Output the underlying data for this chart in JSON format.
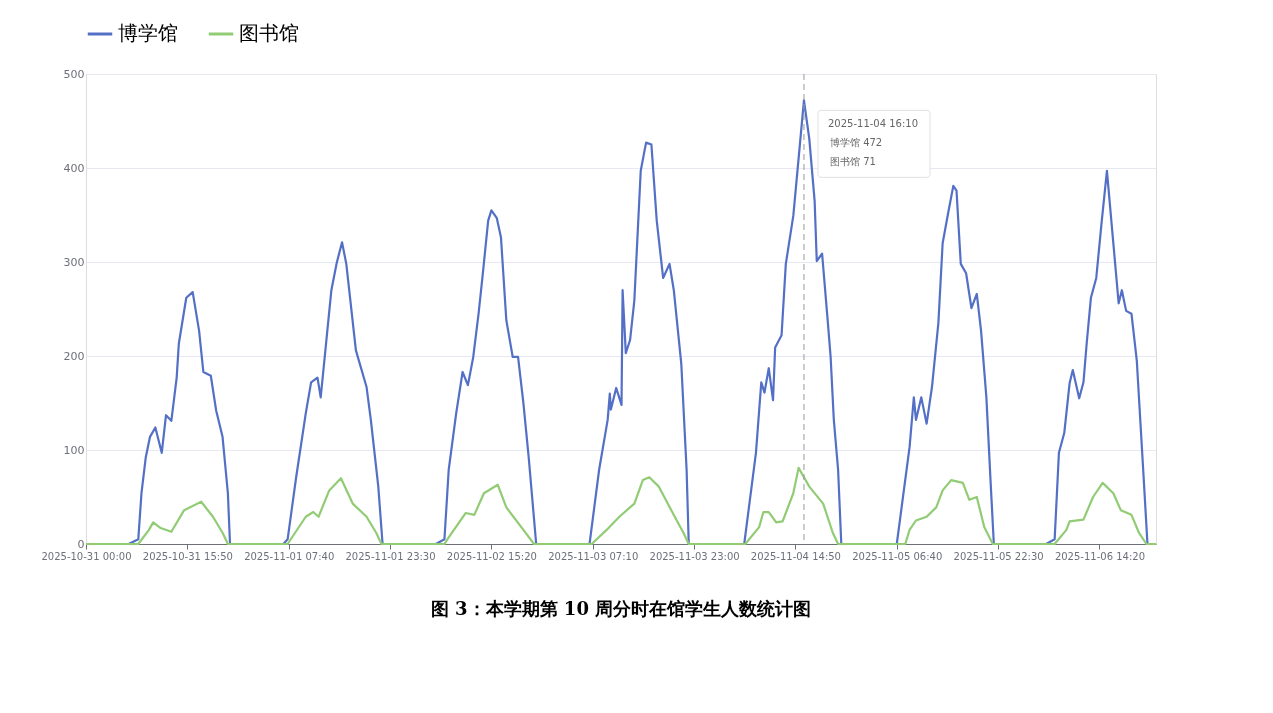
{
  "chart_data": {
    "type": "line",
    "title": "图 3：本学期第 10 周分时在馆学生人数统计图",
    "xlim": [
      "2025-10-31T00:00",
      "2025-11-06T23:10"
    ],
    "xticks": [
      {
        "value": "2025-10-31T00:00",
        "label": "2025-10-31 00:00"
      },
      {
        "value": "2025-10-31T15:50",
        "label": "2025-10-31 15:50"
      },
      {
        "value": "2025-11-01T07:40",
        "label": "2025-11-01 07:40"
      },
      {
        "value": "2025-11-01T23:30",
        "label": "2025-11-01 23:30"
      },
      {
        "value": "2025-11-02T15:20",
        "label": "2025-11-02 15:20"
      },
      {
        "value": "2025-11-03T07:10",
        "label": "2025-11-03 07:10"
      },
      {
        "value": "2025-11-03T23:00",
        "label": "2025-11-03 23:00"
      },
      {
        "value": "2025-11-04T14:50",
        "label": "2025-11-04 14:50"
      },
      {
        "value": "2025-11-05T06:40",
        "label": "2025-11-05 06:40"
      },
      {
        "value": "2025-11-05T22:30",
        "label": "2025-11-05 22:30"
      },
      {
        "value": "2025-11-06T14:20",
        "label": "2025-11-06 14:20"
      }
    ],
    "ylim": [
      0,
      500
    ],
    "yticks": [
      0,
      100,
      200,
      300,
      400,
      500
    ],
    "grid": "y",
    "legend": "top left",
    "line_style": "solid",
    "ref_lines": [
      {
        "axis": "x",
        "value": "2025-11-04T16:10",
        "color": "#999999",
        "line_style": "dashed"
      }
    ],
    "annotations": [
      {
        "text": "2025-11-04 16:10",
        "x": "2025-11-04T16:10",
        "y": 472
      },
      "博学馆  472",
      "图书馆  71"
    ],
    "series": [
      {
        "name": "博学馆",
        "color": "#5470c6",
        "x": [
          "2025-10-31T00:00",
          "2025-10-31T06:40",
          "2025-10-31T08:10",
          "2025-10-31T08:40",
          "2025-10-31T09:20",
          "2025-10-31T10:00",
          "2025-10-31T10:50",
          "2025-10-31T11:50",
          "2025-10-31T12:30",
          "2025-10-31T13:20",
          "2025-10-31T14:10",
          "2025-10-31T14:30",
          "2025-10-31T15:40",
          "2025-10-31T16:40",
          "2025-10-31T17:40",
          "2025-10-31T18:20",
          "2025-10-31T19:30",
          "2025-10-31T20:20",
          "2025-10-31T21:20",
          "2025-10-31T22:10",
          "2025-10-31T22:30",
          "2025-11-01T06:50",
          "2025-11-01T07:30",
          "2025-11-01T08:50",
          "2025-11-01T10:20",
          "2025-11-01T11:10",
          "2025-11-01T12:10",
          "2025-11-01T12:40",
          "2025-11-01T13:30",
          "2025-11-01T14:20",
          "2025-11-01T15:10",
          "2025-11-01T16:00",
          "2025-11-01T16:40",
          "2025-11-01T18:10",
          "2025-11-01T19:50",
          "2025-11-01T20:30",
          "2025-11-01T21:40",
          "2025-11-01T22:20",
          "2025-11-02T06:40",
          "2025-11-02T08:00",
          "2025-11-02T08:40",
          "2025-11-02T09:50",
          "2025-11-02T10:50",
          "2025-11-02T11:40",
          "2025-11-02T12:30",
          "2025-11-02T13:20",
          "2025-11-02T14:00",
          "2025-11-02T14:50",
          "2025-11-02T15:20",
          "2025-11-02T16:10",
          "2025-11-02T16:50",
          "2025-11-02T17:40",
          "2025-11-02T18:40",
          "2025-11-02T19:30",
          "2025-11-02T20:20",
          "2025-11-02T21:10",
          "2025-11-02T22:20",
          "2025-11-03T06:40",
          "2025-11-03T08:10",
          "2025-11-03T09:30",
          "2025-11-03T09:50",
          "2025-11-03T10:00",
          "2025-11-03T10:50",
          "2025-11-03T11:40",
          "2025-11-03T11:50",
          "2025-11-03T12:20",
          "2025-11-03T13:00",
          "2025-11-03T13:40",
          "2025-11-03T14:40",
          "2025-11-03T15:30",
          "2025-11-03T16:20",
          "2025-11-03T17:10",
          "2025-11-03T18:10",
          "2025-11-03T19:10",
          "2025-11-03T19:50",
          "2025-11-03T21:00",
          "2025-11-03T21:50",
          "2025-11-03T22:10",
          "2025-11-04T06:50",
          "2025-11-04T08:40",
          "2025-11-04T09:30",
          "2025-11-04T10:00",
          "2025-11-04T10:40",
          "2025-11-04T11:20",
          "2025-11-04T11:40",
          "2025-11-04T12:40",
          "2025-11-04T13:20",
          "2025-11-04T14:30",
          "2025-11-04T16:10",
          "2025-11-04T17:00",
          "2025-11-04T17:50",
          "2025-11-04T18:10",
          "2025-11-04T19:00",
          "2025-11-04T19:50",
          "2025-11-04T20:20",
          "2025-11-04T20:50",
          "2025-11-04T21:30",
          "2025-11-04T22:00",
          "2025-11-05T06:40",
          "2025-11-05T08:40",
          "2025-11-05T09:20",
          "2025-11-05T09:40",
          "2025-11-05T10:30",
          "2025-11-05T11:20",
          "2025-11-05T12:10",
          "2025-11-05T13:10",
          "2025-11-05T13:50",
          "2025-11-05T14:40",
          "2025-11-05T15:30",
          "2025-11-05T16:00",
          "2025-11-05T16:40",
          "2025-11-05T17:30",
          "2025-11-05T18:20",
          "2025-11-05T19:10",
          "2025-11-05T19:50",
          "2025-11-05T20:40",
          "2025-11-05T21:20",
          "2025-11-05T21:50",
          "2025-11-06T06:00",
          "2025-11-06T07:20",
          "2025-11-06T08:00",
          "2025-11-06T08:50",
          "2025-11-06T09:40",
          "2025-11-06T10:10",
          "2025-11-06T11:10",
          "2025-11-06T11:50",
          "2025-11-06T12:20",
          "2025-11-06T13:00",
          "2025-11-06T13:50",
          "2025-11-06T14:40",
          "2025-11-06T15:30",
          "2025-11-06T16:30",
          "2025-11-06T17:20",
          "2025-11-06T17:50",
          "2025-11-06T18:30",
          "2025-11-06T19:20",
          "2025-11-06T20:10",
          "2025-11-06T21:10",
          "2025-11-06T21:50",
          "2025-11-06T23:10"
        ],
        "values": [
          0,
          0,
          5,
          54,
          92,
          114,
          124,
          97,
          137,
          131,
          177,
          213,
          262,
          268,
          227,
          183,
          179,
          142,
          114,
          54,
          0,
          0,
          5,
          71,
          139,
          172,
          177,
          156,
          213,
          270,
          299,
          321,
          298,
          206,
          167,
          132,
          61,
          0,
          0,
          5,
          79,
          139,
          183,
          169,
          199,
          245,
          288,
          344,
          355,
          347,
          326,
          238,
          199,
          199,
          150,
          92,
          0,
          0,
          79,
          132,
          160,
          143,
          166,
          148,
          270,
          203,
          217,
          259,
          397,
          427,
          425,
          344,
          283,
          298,
          270,
          192,
          79,
          0,
          0,
          97,
          172,
          161,
          187,
          153,
          209,
          222,
          298,
          349,
          472,
          431,
          365,
          301,
          309,
          241,
          199,
          132,
          79,
          0,
          0,
          103,
          156,
          132,
          156,
          128,
          167,
          235,
          320,
          351,
          381,
          376,
          298,
          288,
          251,
          266,
          227,
          156,
          65,
          0,
          0,
          5,
          97,
          118,
          171,
          185,
          155,
          172,
          213,
          262,
          283,
          342,
          397,
          320,
          256,
          270,
          248,
          245,
          195,
          79,
          0,
          0
        ]
      },
      {
        "name": "图书馆",
        "color": "#91cc75",
        "x": [
          "2025-10-31T00:00",
          "2025-10-31T08:10",
          "2025-10-31T09:50",
          "2025-10-31T10:30",
          "2025-10-31T11:40",
          "2025-10-31T13:20",
          "2025-10-31T15:20",
          "2025-10-31T18:00",
          "2025-10-31T19:50",
          "2025-10-31T21:20",
          "2025-10-31T22:10",
          "2025-11-01T07:30",
          "2025-11-01T10:20",
          "2025-11-01T11:30",
          "2025-11-01T12:20",
          "2025-11-01T14:00",
          "2025-11-01T15:50",
          "2025-11-01T17:40",
          "2025-11-01T19:50",
          "2025-11-01T21:20",
          "2025-11-01T22:10",
          "2025-11-02T08:00",
          "2025-11-02T08:40",
          "2025-11-02T11:20",
          "2025-11-02T12:40",
          "2025-11-02T14:10",
          "2025-11-02T16:20",
          "2025-11-02T17:40",
          "2025-11-02T20:20",
          "2025-11-02T22:00",
          "2025-11-03T07:00",
          "2025-11-03T09:20",
          "2025-11-03T11:20",
          "2025-11-03T13:40",
          "2025-11-03T15:00",
          "2025-11-03T16:00",
          "2025-11-03T17:30",
          "2025-11-03T19:40",
          "2025-11-03T21:20",
          "2025-11-03T22:10",
          "2025-11-04T07:00",
          "2025-11-04T09:10",
          "2025-11-04T09:50",
          "2025-11-04T10:40",
          "2025-11-04T11:50",
          "2025-11-04T12:50",
          "2025-11-04T14:30",
          "2025-11-04T15:20",
          "2025-11-04T16:10",
          "2025-11-04T17:00",
          "2025-11-04T19:10",
          "2025-11-04T20:40",
          "2025-11-04T21:30",
          "2025-11-05T08:00",
          "2025-11-05T08:40",
          "2025-11-05T09:40",
          "2025-11-05T11:20",
          "2025-11-05T12:50",
          "2025-11-05T13:50",
          "2025-11-05T15:10",
          "2025-11-05T17:00",
          "2025-11-05T18:00",
          "2025-11-05T19:10",
          "2025-11-05T20:20",
          "2025-11-05T21:40",
          "2025-11-06T07:20",
          "2025-11-06T09:10",
          "2025-11-06T09:40",
          "2025-11-06T11:50",
          "2025-11-06T13:20",
          "2025-11-06T14:50",
          "2025-11-06T16:30",
          "2025-11-06T17:40",
          "2025-11-06T19:20",
          "2025-11-06T20:30",
          "2025-11-06T21:40",
          "2025-11-06T23:10"
        ],
        "values": [
          0,
          0,
          15,
          23,
          17,
          13,
          36,
          45,
          29,
          12,
          0,
          0,
          29,
          34,
          29,
          57,
          70,
          43,
          29,
          12,
          0,
          0,
          7,
          33,
          31,
          54,
          63,
          39,
          15,
          0,
          0,
          15,
          29,
          43,
          68,
          71,
          61,
          33,
          12,
          0,
          0,
          18,
          34,
          34,
          23,
          24,
          54,
          81,
          71,
          61,
          43,
          12,
          0,
          0,
          15,
          25,
          29,
          39,
          57,
          68,
          65,
          47,
          50,
          18,
          0,
          0,
          15,
          24,
          26,
          50,
          65,
          54,
          36,
          31,
          12,
          0,
          0
        ]
      }
    ]
  }
}
